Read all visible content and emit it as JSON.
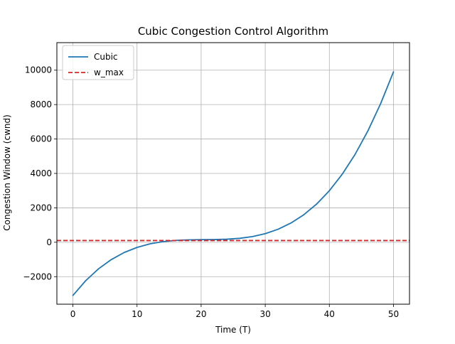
{
  "chart_data": {
    "type": "line",
    "title": "Cubic Congestion Control Algorithm",
    "xlabel": "Time (T)",
    "ylabel": "Congestion Window (cwnd)",
    "xlim": [
      -2.5,
      52.5
    ],
    "ylim": [
      -3600,
      11600
    ],
    "x_ticks": [
      0,
      10,
      20,
      30,
      40,
      50
    ],
    "x_tick_labels": [
      "0",
      "10",
      "20",
      "30",
      "40",
      "50"
    ],
    "y_ticks": [
      -2000,
      0,
      2000,
      4000,
      6000,
      8000,
      10000
    ],
    "y_tick_labels": [
      "−2000",
      "0",
      "2000",
      "4000",
      "6000",
      "8000",
      "10000"
    ],
    "grid": true,
    "legend_position": "top-left",
    "series": [
      {
        "name": "Cubic",
        "color": "#1f77b4",
        "style": "solid",
        "x": [
          0,
          2,
          4,
          6,
          8,
          10,
          12,
          14,
          16,
          18,
          20,
          22,
          24,
          26,
          28,
          30,
          32,
          34,
          36,
          38,
          40,
          42,
          44,
          46,
          48,
          50
        ],
        "y": [
          -3092,
          -2232,
          -1543,
          -1004,
          -596,
          -300,
          -96,
          34,
          106,
          139,
          150,
          156,
          177,
          229,
          330,
          500,
          756,
          1114,
          1595,
          2215,
          2994,
          3950,
          5100,
          6464,
          8058,
          9902
        ]
      },
      {
        "name": "w_max",
        "color": "#d62728",
        "style": "dashed",
        "x": [
          -2.5,
          52.5
        ],
        "y": [
          100,
          100
        ]
      }
    ]
  }
}
